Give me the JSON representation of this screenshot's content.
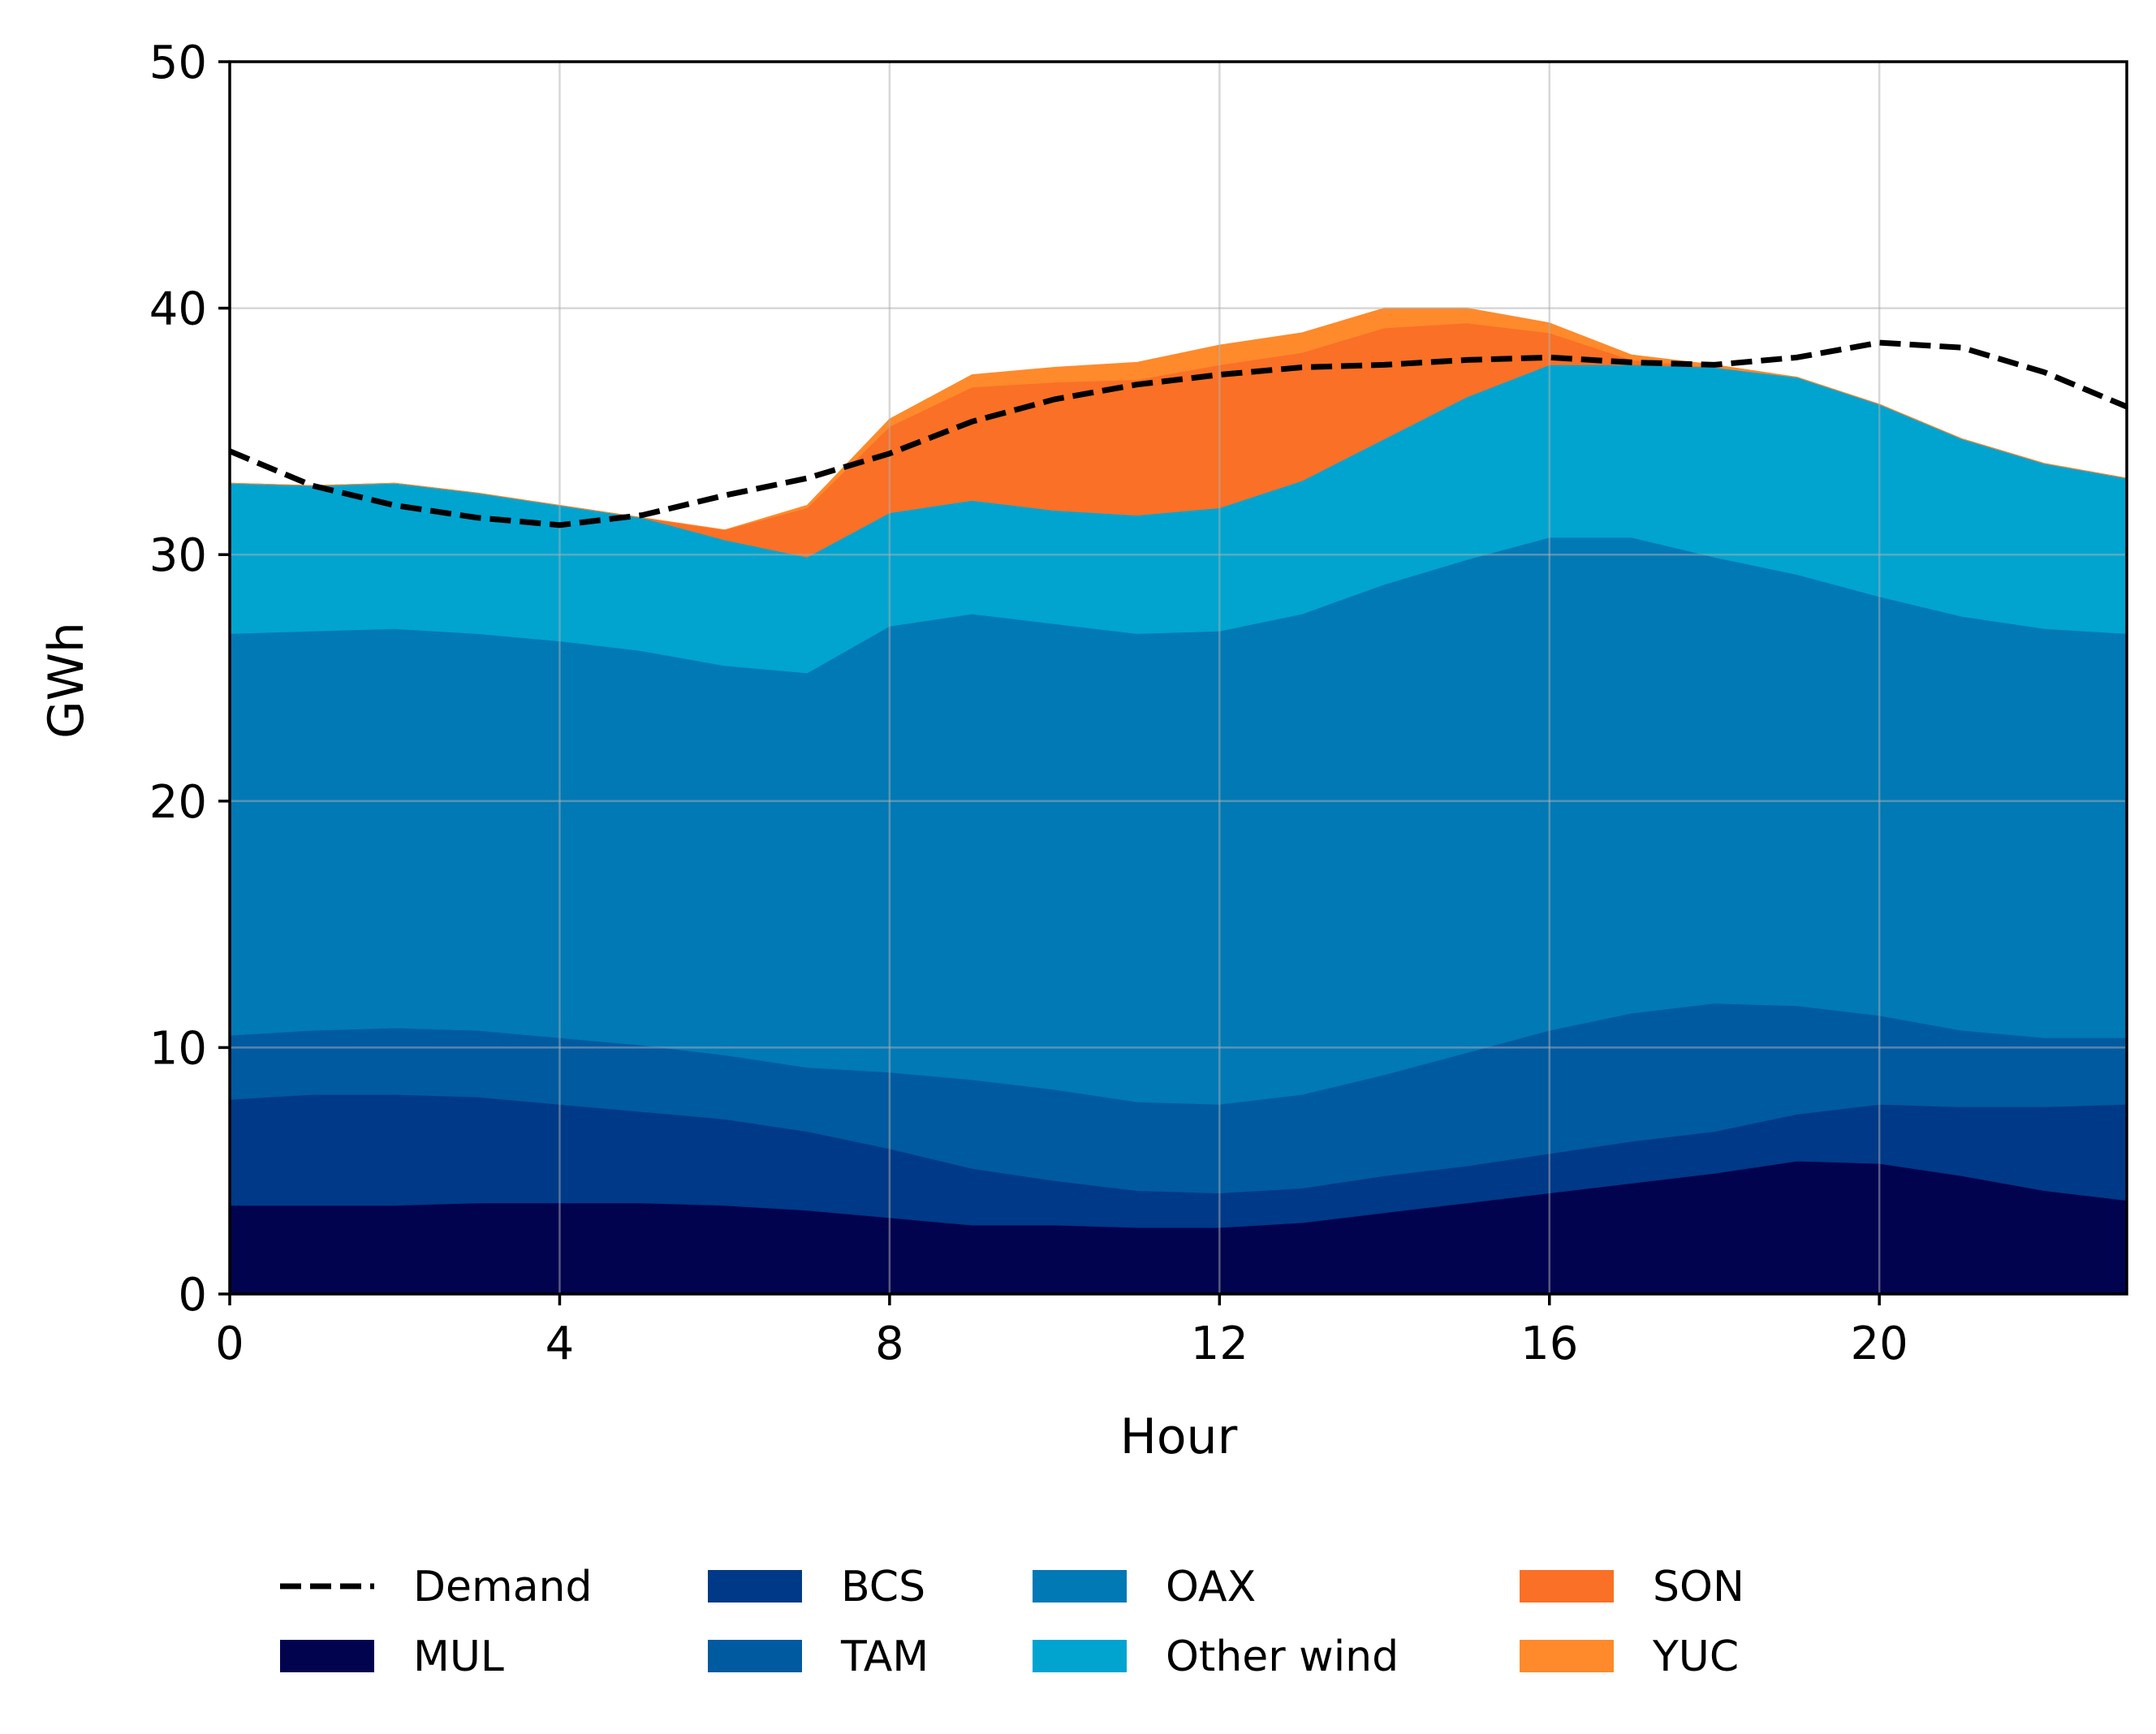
{
  "chart_data": {
    "type": "area",
    "stacked": true,
    "xlabel": "Hour",
    "ylabel": "GWh",
    "xlim": [
      0,
      23
    ],
    "ylim": [
      0,
      50
    ],
    "xticks": [
      0,
      4,
      8,
      12,
      16,
      20
    ],
    "yticks": [
      0,
      10,
      20,
      30,
      40,
      50
    ],
    "grid": true,
    "legend_position": "bottom",
    "x": [
      0,
      1,
      2,
      3,
      4,
      5,
      6,
      7,
      8,
      9,
      10,
      11,
      12,
      13,
      14,
      15,
      16,
      17,
      18,
      19,
      20,
      21,
      22,
      23
    ],
    "series": [
      {
        "name": "MUL",
        "color": "#02034f",
        "values": [
          3.6,
          3.6,
          3.6,
          3.7,
          3.7,
          3.7,
          3.6,
          3.4,
          3.1,
          2.8,
          2.8,
          2.7,
          2.7,
          2.9,
          3.3,
          3.7,
          4.1,
          4.5,
          4.9,
          5.4,
          5.3,
          4.8,
          4.2,
          3.8
        ]
      },
      {
        "name": "BCS",
        "color": "#003987",
        "values": [
          4.3,
          4.5,
          4.5,
          4.3,
          4.0,
          3.7,
          3.5,
          3.2,
          2.8,
          2.3,
          1.8,
          1.5,
          1.4,
          1.4,
          1.5,
          1.5,
          1.6,
          1.7,
          1.7,
          1.9,
          2.4,
          2.8,
          3.4,
          3.9
        ]
      },
      {
        "name": "TAM",
        "color": "#005aa0",
        "values": [
          2.6,
          2.6,
          2.7,
          2.7,
          2.7,
          2.7,
          2.6,
          2.6,
          3.1,
          3.6,
          3.7,
          3.6,
          3.6,
          3.8,
          4.1,
          4.6,
          5.0,
          5.2,
          5.2,
          4.4,
          3.6,
          3.1,
          2.8,
          2.7
        ]
      },
      {
        "name": "OAX",
        "color": "#0179b5",
        "values": [
          16.3,
          16.2,
          16.2,
          16.1,
          16.1,
          16.0,
          15.8,
          16.0,
          18.1,
          18.9,
          18.9,
          19.0,
          19.2,
          19.5,
          19.9,
          20.0,
          20.0,
          19.3,
          18.1,
          17.5,
          17.0,
          16.8,
          16.6,
          16.4
        ]
      },
      {
        "name": "Other wind",
        "color": "#00a4cf",
        "values": [
          6.1,
          5.9,
          5.9,
          5.7,
          5.5,
          5.4,
          5.1,
          4.7,
          4.6,
          4.6,
          4.6,
          4.8,
          5.0,
          5.4,
          5.9,
          6.6,
          7.0,
          7.0,
          7.7,
          8.0,
          7.8,
          7.2,
          6.7,
          6.3
        ]
      },
      {
        "name": "SON",
        "color": "#fa7026",
        "values": [
          0,
          0,
          0,
          0,
          0,
          0,
          0.4,
          2.0,
          3.5,
          4.6,
          5.2,
          5.5,
          5.8,
          5.2,
          4.5,
          3.0,
          1.3,
          0.2,
          0,
          0,
          0,
          0,
          0,
          0
        ]
      },
      {
        "name": "YUC",
        "color": "#fe8a2c",
        "values": [
          0,
          0,
          0,
          0,
          0,
          0,
          0,
          0.1,
          0.3,
          0.5,
          0.6,
          0.7,
          0.8,
          0.8,
          0.8,
          0.6,
          0.4,
          0.2,
          0.1,
          0,
          0,
          0,
          0,
          0
        ]
      }
    ],
    "demand": {
      "name": "Demand",
      "color": "#000000",
      "dash": "dashed",
      "values": [
        34.2,
        32.8,
        32.0,
        31.5,
        31.2,
        31.6,
        32.4,
        33.1,
        34.1,
        35.4,
        36.3,
        36.9,
        37.3,
        37.6,
        37.7,
        37.9,
        38.0,
        37.8,
        37.7,
        38.0,
        38.6,
        38.4,
        37.4,
        36.0
      ]
    },
    "legend": [
      {
        "label": "Demand",
        "kind": "line",
        "color": "#000000"
      },
      {
        "label": "MUL",
        "kind": "patch",
        "color": "#02034f"
      },
      {
        "label": "BCS",
        "kind": "patch",
        "color": "#003987"
      },
      {
        "label": "TAM",
        "kind": "patch",
        "color": "#005aa0"
      },
      {
        "label": "OAX",
        "kind": "patch",
        "color": "#0179b5"
      },
      {
        "label": "Other wind",
        "kind": "patch",
        "color": "#00a4cf"
      },
      {
        "label": "SON",
        "kind": "patch",
        "color": "#fa7026"
      },
      {
        "label": "YUC",
        "kind": "patch",
        "color": "#fe8a2c"
      }
    ]
  }
}
